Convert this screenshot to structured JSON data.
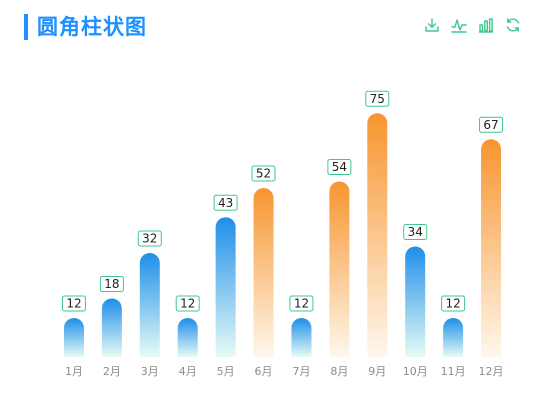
{
  "title": "圆角柱状图",
  "toolbox": {
    "items": [
      "download-icon",
      "line-chart-icon",
      "bar-chart-icon",
      "refresh-icon"
    ],
    "color": "#3cc98b"
  },
  "colors": {
    "title": "#1e90ff",
    "blue_top": "#1e8fe8",
    "blue_bottom": "#e6fbf6",
    "orange_top": "#f7952f",
    "orange_bottom": "#fff7ec",
    "label_border": "#3cc98b",
    "axis_text": "#8c8c8c"
  },
  "chart_data": {
    "type": "bar",
    "categories": [
      "1月",
      "2月",
      "3月",
      "4月",
      "5月",
      "6月",
      "7月",
      "8月",
      "9月",
      "10月",
      "11月",
      "12月"
    ],
    "series": [
      {
        "values": [
          12,
          18,
          32,
          12,
          43,
          52,
          12,
          54,
          75,
          34,
          12,
          67
        ],
        "colors": [
          "blue",
          "blue",
          "blue",
          "blue",
          "blue",
          "orange",
          "blue",
          "orange",
          "orange",
          "blue",
          "blue",
          "orange"
        ]
      }
    ],
    "ylim": [
      0,
      80
    ],
    "grid": false,
    "bar_style": "rounded top, vertical gradient",
    "data_labels": true
  }
}
